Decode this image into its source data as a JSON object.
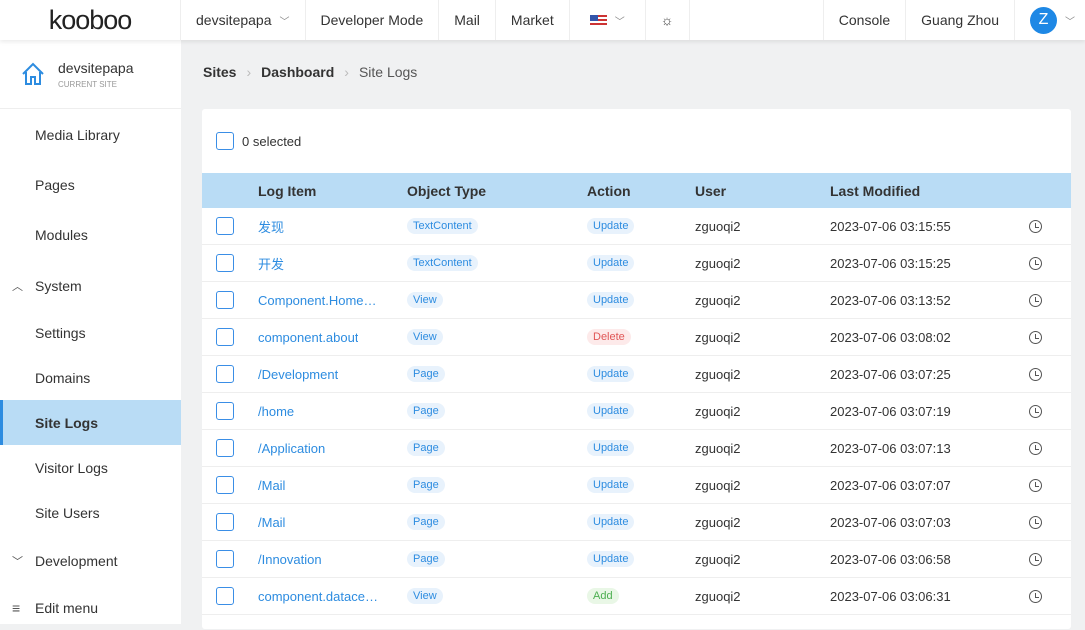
{
  "topbar": {
    "logo": "kooboo",
    "site": "devsitepapa",
    "developer_mode": "Developer Mode",
    "mail": "Mail",
    "market": "Market",
    "console": "Console",
    "user_name": "Guang Zhou",
    "avatar_letter": "Z"
  },
  "sidebar": {
    "current_site": "devsitepapa",
    "current_site_label": "CURRENT SITE",
    "items": [
      {
        "label": "Media Library"
      },
      {
        "label": "Pages"
      },
      {
        "label": "Modules"
      },
      {
        "label": "System"
      },
      {
        "label": "Settings"
      },
      {
        "label": "Domains"
      },
      {
        "label": "Site Logs"
      },
      {
        "label": "Visitor Logs"
      },
      {
        "label": "Site Users"
      },
      {
        "label": "Development"
      },
      {
        "label": "Edit menu"
      }
    ]
  },
  "breadcrumb": [
    "Sites",
    "Dashboard",
    "Site Logs"
  ],
  "selection": "0 selected",
  "table": {
    "headers": [
      "Log Item",
      "Object Type",
      "Action",
      "User",
      "Last Modified"
    ],
    "rows": [
      {
        "item": "发现",
        "type": "TextContent",
        "action": "Update",
        "user": "zguoqi2",
        "modified": "2023-07-06 03:15:55"
      },
      {
        "item": "开发",
        "type": "TextContent",
        "action": "Update",
        "user": "zguoqi2",
        "modified": "2023-07-06 03:15:25"
      },
      {
        "item": "Component.HomePage",
        "type": "View",
        "action": "Update",
        "user": "zguoqi2",
        "modified": "2023-07-06 03:13:52"
      },
      {
        "item": "component.about",
        "type": "View",
        "action": "Delete",
        "user": "zguoqi2",
        "modified": "2023-07-06 03:08:02"
      },
      {
        "item": "/Development",
        "type": "Page",
        "action": "Update",
        "user": "zguoqi2",
        "modified": "2023-07-06 03:07:25"
      },
      {
        "item": "/home",
        "type": "Page",
        "action": "Update",
        "user": "zguoqi2",
        "modified": "2023-07-06 03:07:19"
      },
      {
        "item": "/Application",
        "type": "Page",
        "action": "Update",
        "user": "zguoqi2",
        "modified": "2023-07-06 03:07:13"
      },
      {
        "item": "/Mail",
        "type": "Page",
        "action": "Update",
        "user": "zguoqi2",
        "modified": "2023-07-06 03:07:07"
      },
      {
        "item": "/Mail",
        "type": "Page",
        "action": "Update",
        "user": "zguoqi2",
        "modified": "2023-07-06 03:07:03"
      },
      {
        "item": "/Innovation",
        "type": "Page",
        "action": "Update",
        "user": "zguoqi2",
        "modified": "2023-07-06 03:06:58"
      },
      {
        "item": "component.datacenter",
        "type": "View",
        "action": "Add",
        "user": "zguoqi2",
        "modified": "2023-07-06 03:06:31"
      }
    ]
  }
}
